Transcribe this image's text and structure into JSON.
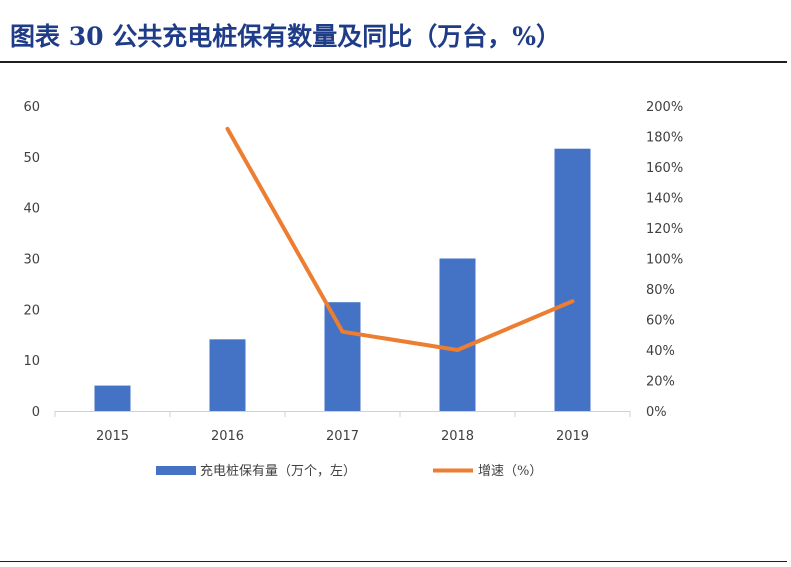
{
  "title": "图表 30  公共充电桩保有数量及同比（万台，%）",
  "chart_data": {
    "type": "bar",
    "categories": [
      "2015",
      "2016",
      "2017",
      "2018",
      "2019"
    ],
    "series": [
      {
        "name": "充电桩保有量（万个，左）",
        "type": "bar",
        "axis": "left",
        "color": "#4472c4",
        "values": [
          5,
          14.1,
          21.4,
          30,
          51.6
        ]
      },
      {
        "name": "增速（%）",
        "type": "line",
        "axis": "right",
        "color": "#ed7d31",
        "values": [
          null,
          185,
          52,
          40,
          72
        ]
      }
    ],
    "y_left": {
      "min": 0,
      "max": 60,
      "ticks": [
        "0",
        "10",
        "20",
        "30",
        "40",
        "50",
        "60"
      ]
    },
    "y_right": {
      "min": 0,
      "max": 200,
      "ticks": [
        "0%",
        "20%",
        "40%",
        "60%",
        "80%",
        "100%",
        "120%",
        "140%",
        "160%",
        "180%",
        "200%"
      ]
    },
    "legend": {
      "position": "bottom"
    },
    "grid": false
  }
}
